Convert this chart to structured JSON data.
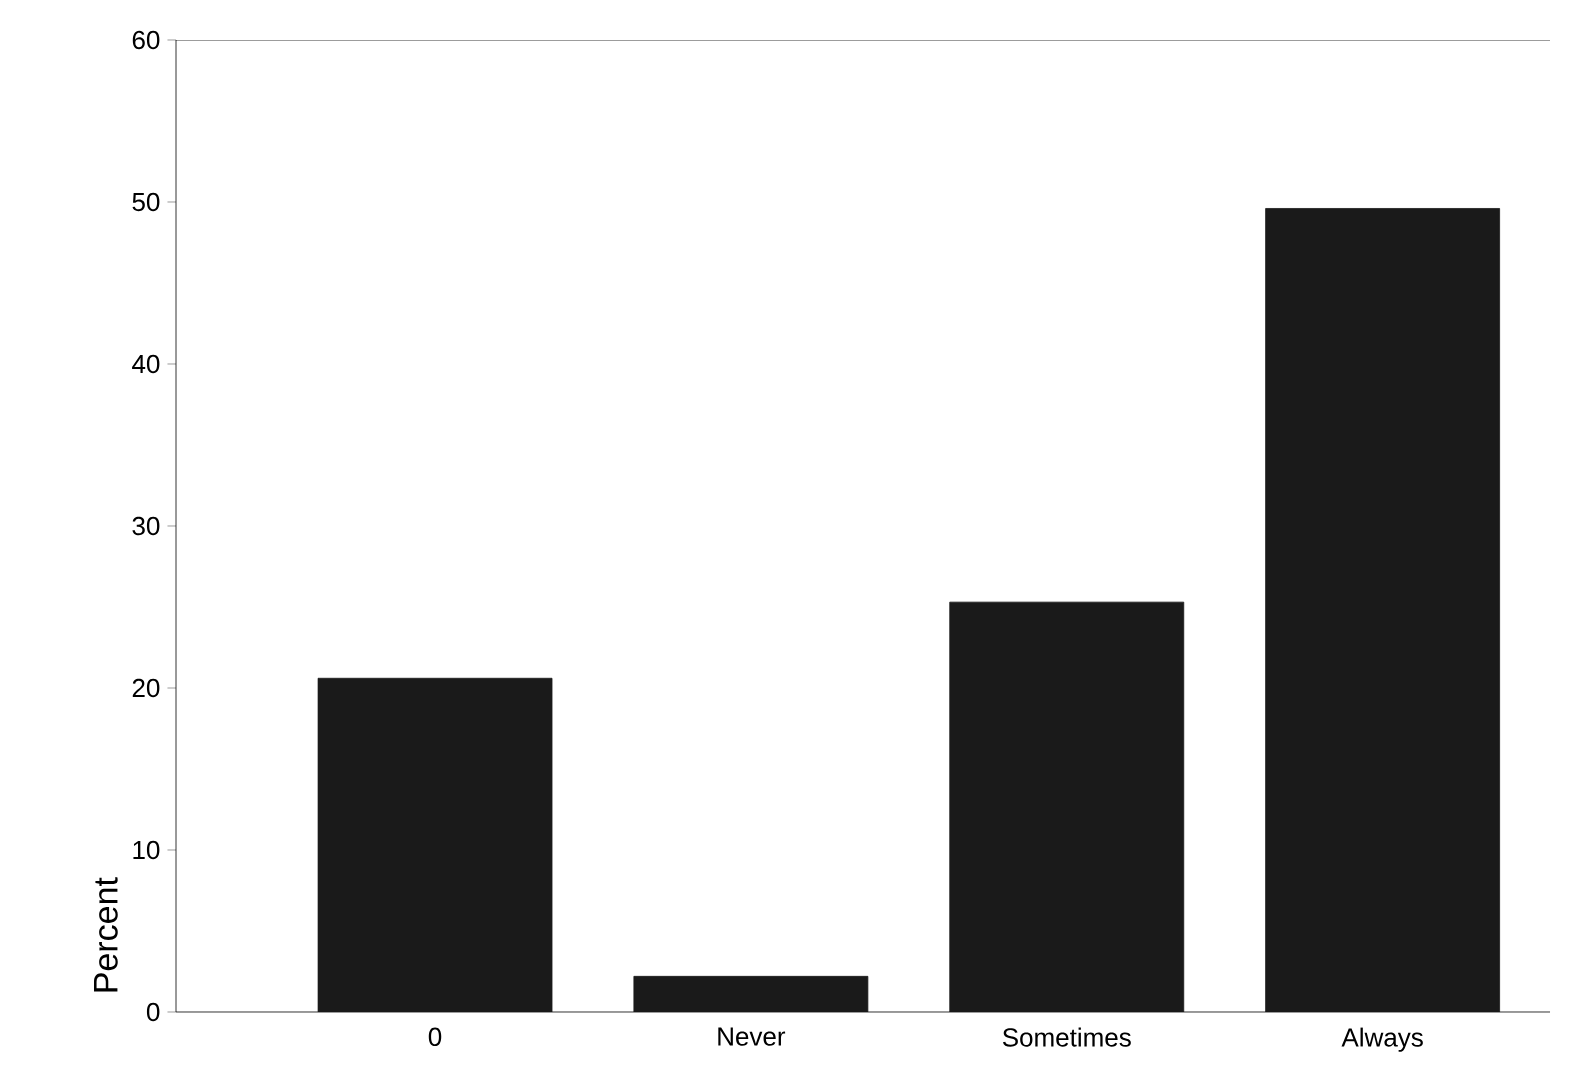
{
  "chart_data": {
    "type": "bar",
    "ylabel": "Percent",
    "categories": [
      "0",
      "Never",
      "Sometimes",
      "Always"
    ],
    "values": [
      20.6,
      2.2,
      25.3,
      49.6
    ],
    "color": "#1a1a1a",
    "ylim": [
      0,
      60
    ],
    "yticks": [
      0,
      10,
      20,
      30,
      40,
      50,
      60
    ],
    "grid": false
  }
}
